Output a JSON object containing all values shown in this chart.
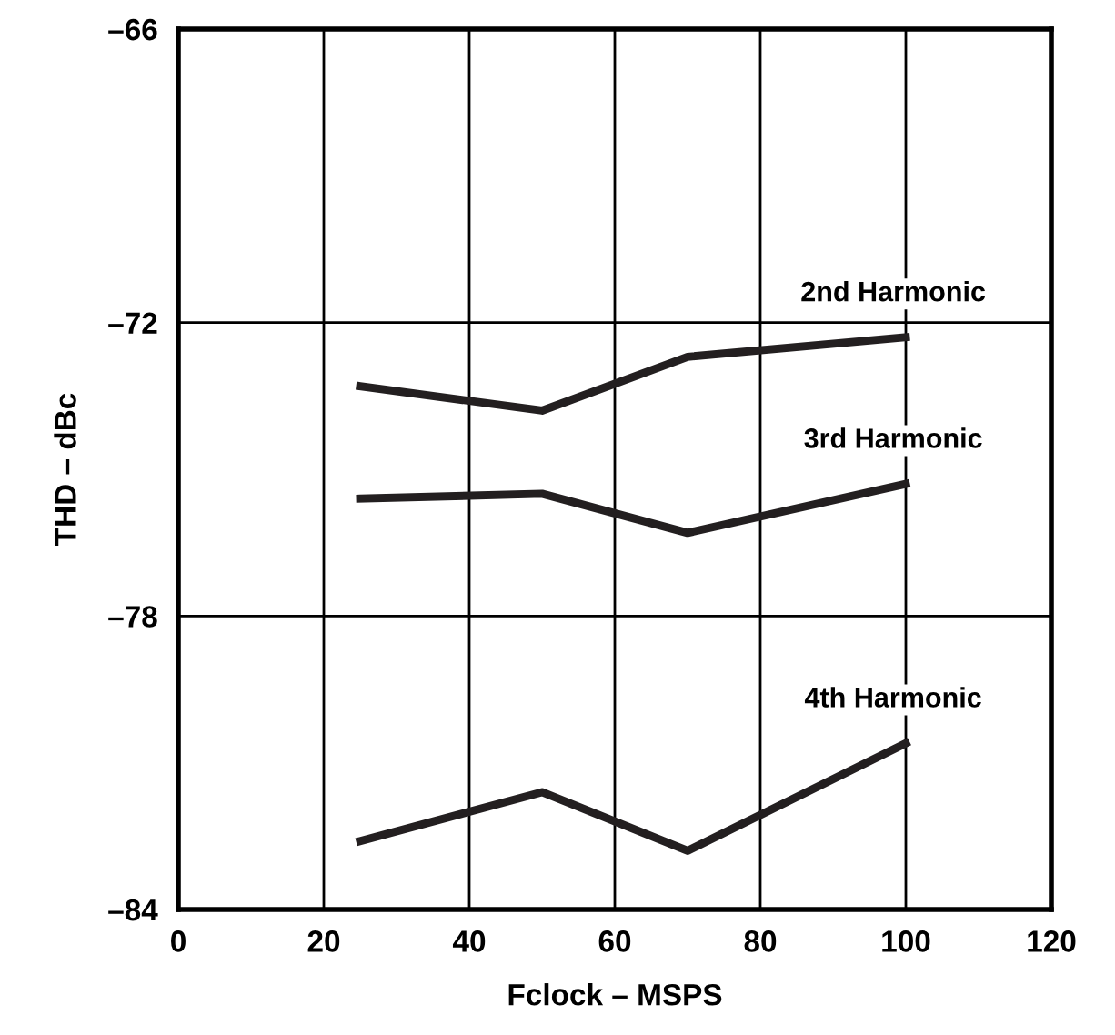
{
  "chart_data": {
    "type": "line",
    "xlabel": "Fclock – MSPS",
    "ylabel": "THD – dBc",
    "x": [
      25,
      50,
      70,
      100
    ],
    "series": [
      {
        "name": "2nd Harmonic",
        "color": "#231f20",
        "values": [
          -73.3,
          -73.8,
          -72.7,
          -72.3
        ]
      },
      {
        "name": "3rd Harmonic",
        "color": "#231f20",
        "values": [
          -75.6,
          -75.5,
          -76.3,
          -75.3
        ]
      },
      {
        "name": "4th Harmonic",
        "color": "#231f20",
        "values": [
          -82.6,
          -81.6,
          -82.8,
          -80.6
        ]
      }
    ],
    "xlim": [
      0,
      120
    ],
    "xticks": [
      0,
      20,
      40,
      60,
      80,
      100,
      120
    ],
    "ylim": [
      -84,
      -66
    ],
    "yticks": [
      {
        "value": -84,
        "label": "–84"
      },
      {
        "value": -78,
        "label": "–78"
      },
      {
        "value": -72,
        "label": "–72"
      },
      {
        "value": -66,
        "label": "–66"
      }
    ],
    "grid": true,
    "marker": "none",
    "line_style": "solid",
    "legend": false
  }
}
